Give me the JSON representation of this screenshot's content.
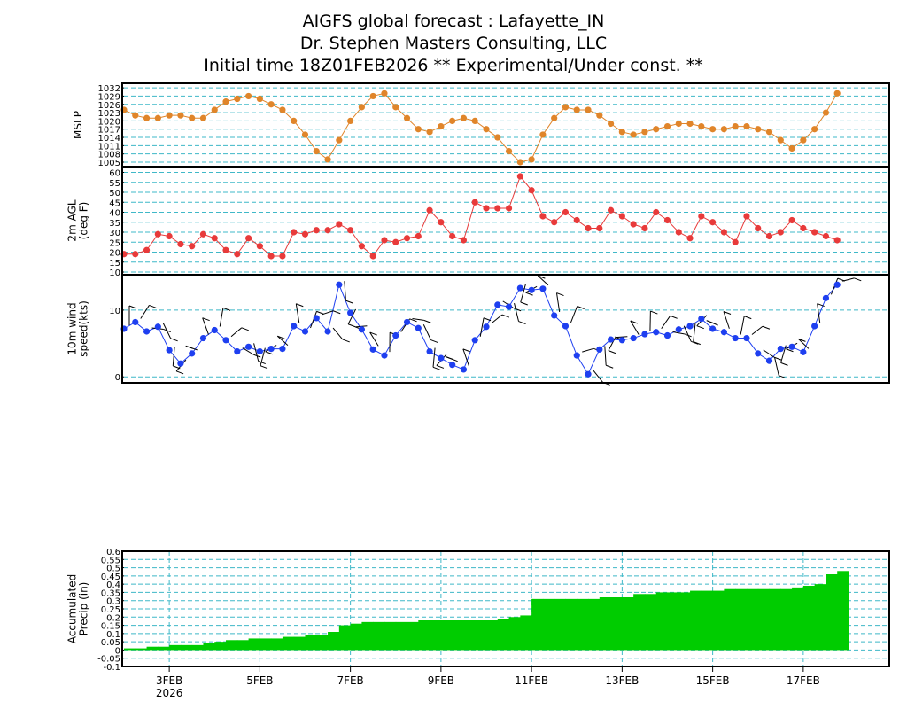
{
  "title": {
    "line1": "AIGFS global forecast : Lafayette_IN",
    "line2": "Dr. Stephen Masters Consulting, LLC",
    "line3": "Initial time 18Z01FEB2026  ** Experimental/Under const. **"
  },
  "colors": {
    "mslp": "#e0852a",
    "temp": "#e83a3a",
    "wind": "#1e3ff0",
    "precip": "#00cc00",
    "grid": "#3fb8c8"
  },
  "x_ticks": [
    {
      "day": 3,
      "label": "3FEB",
      "sub": "2026"
    },
    {
      "day": 5,
      "label": "5FEB",
      "sub": ""
    },
    {
      "day": 7,
      "label": "7FEB",
      "sub": ""
    },
    {
      "day": 9,
      "label": "9FEB",
      "sub": ""
    },
    {
      "day": 11,
      "label": "11FEB",
      "sub": ""
    },
    {
      "day": 13,
      "label": "13FEB",
      "sub": ""
    },
    {
      "day": 15,
      "label": "15FEB",
      "sub": ""
    },
    {
      "day": 17,
      "label": "17FEB",
      "sub": ""
    }
  ],
  "chart_data": [
    {
      "type": "line",
      "ylabel": "MSLP",
      "xrange_days": [
        2,
        18.9
      ],
      "ylim": [
        1005,
        1033
      ],
      "yticks": [
        1005,
        1008,
        1011,
        1014,
        1017,
        1020,
        1023,
        1026,
        1029,
        1032
      ],
      "series": [
        {
          "x_start_day": 2.0,
          "x_step_days": 0.25,
          "values": [
            1024,
            1022,
            1021,
            1021,
            1022,
            1022,
            1021,
            1021,
            1024,
            1027,
            1028,
            1029,
            1028,
            1026,
            1024,
            1020,
            1015,
            1009,
            1006,
            1013,
            1020,
            1025,
            1029,
            1030,
            1025,
            1021,
            1017,
            1016,
            1018,
            1020,
            1021,
            1020,
            1017,
            1014,
            1009,
            1005,
            1006,
            1015,
            1021,
            1025,
            1024,
            1024,
            1022,
            1019,
            1016,
            1015,
            1016,
            1017,
            1018,
            1019,
            1019,
            1018,
            1017,
            1017,
            1018,
            1018,
            1017,
            1016,
            1013,
            1010,
            1013,
            1017,
            1023,
            1030
          ]
        }
      ]
    },
    {
      "type": "line",
      "ylabel": "2m AGL\n(deg F)",
      "xrange_days": [
        2,
        18.9
      ],
      "ylim": [
        10,
        62
      ],
      "yticks": [
        10,
        15,
        20,
        25,
        30,
        35,
        40,
        45,
        50,
        55,
        60
      ],
      "series": [
        {
          "x_start_day": 2.0,
          "x_step_days": 0.25,
          "values": [
            19,
            19,
            21,
            29,
            28,
            24,
            23,
            29,
            27,
            21,
            19,
            27,
            23,
            18,
            18,
            30,
            29,
            31,
            31,
            34,
            31,
            23,
            18,
            26,
            25,
            27,
            28,
            41,
            35,
            28,
            26,
            45,
            42,
            42,
            42,
            58,
            51,
            38,
            35,
            40,
            36,
            32,
            32,
            41,
            38,
            34,
            32,
            40,
            36,
            30,
            27,
            38,
            35,
            30,
            25,
            38,
            32,
            28,
            30,
            36,
            32,
            30,
            28,
            26
          ]
        }
      ]
    },
    {
      "type": "line",
      "ylabel": "10m wind\nspeed(kts)",
      "xrange_days": [
        2,
        18.9
      ],
      "ylim": [
        -0.5,
        14.5
      ],
      "yticks": [
        0,
        10
      ],
      "series": [
        {
          "x_start_day": 2.0,
          "x_step_days": 0.25,
          "values": [
            7.2,
            8.2,
            6.8,
            7.5,
            4.0,
            2.0,
            3.5,
            5.8,
            7.0,
            5.5,
            3.8,
            4.5,
            3.8,
            4.2,
            4.2,
            7.6,
            6.8,
            8.8,
            6.8,
            13.8,
            9.6,
            7.1,
            4.1,
            3.2,
            6.2,
            8.2,
            7.3,
            3.8,
            2.8,
            1.8,
            1.1,
            5.5,
            7.5,
            10.8,
            10.5,
            13.3,
            13.0,
            13.2,
            9.2,
            7.6,
            3.2,
            0.4,
            4.1,
            5.6,
            5.5,
            5.8,
            6.4,
            6.7,
            6.2,
            7.1,
            7.6,
            8.7,
            7.2,
            6.7,
            5.8,
            5.8,
            3.5,
            2.4,
            4.2,
            4.5,
            3.7,
            7.6,
            11.8,
            13.8
          ]
        }
      ]
    },
    {
      "type": "bar",
      "ylabel": "Accumulated\nPrecip (in)",
      "xrange_days": [
        2,
        18.9
      ],
      "ylim": [
        -0.1,
        0.6
      ],
      "yticks": [
        -0.1,
        -0.05,
        0,
        0.05,
        0.1,
        0.15,
        0.2,
        0.25,
        0.3,
        0.35,
        0.4,
        0.45,
        0.5,
        0.55,
        0.6
      ],
      "series": [
        {
          "x_start_day": 2.0,
          "x_step_days": 0.25,
          "values": [
            0.01,
            0.01,
            0.02,
            0.02,
            0.03,
            0.03,
            0.03,
            0.04,
            0.05,
            0.06,
            0.06,
            0.07,
            0.07,
            0.07,
            0.08,
            0.08,
            0.09,
            0.09,
            0.11,
            0.15,
            0.16,
            0.17,
            0.17,
            0.17,
            0.17,
            0.17,
            0.18,
            0.18,
            0.18,
            0.18,
            0.18,
            0.18,
            0.18,
            0.19,
            0.2,
            0.21,
            0.31,
            0.31,
            0.31,
            0.31,
            0.31,
            0.31,
            0.32,
            0.32,
            0.32,
            0.34,
            0.34,
            0.35,
            0.35,
            0.35,
            0.36,
            0.36,
            0.36,
            0.37,
            0.37,
            0.37,
            0.37,
            0.37,
            0.37,
            0.38,
            0.39,
            0.4,
            0.46,
            0.48
          ]
        }
      ]
    }
  ]
}
